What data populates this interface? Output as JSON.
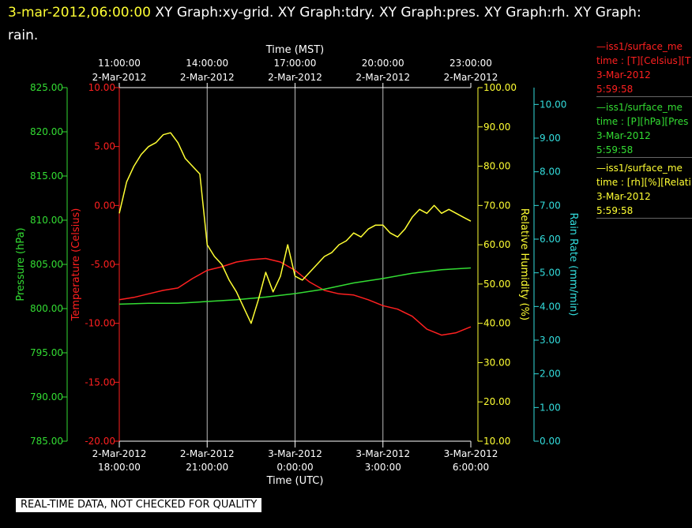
{
  "header": {
    "timestamp": "3-mar-2012,06:00:00",
    "title_line1": "XY Graph:xy-grid.  XY Graph:tdry.  XY Graph:pres.  XY Graph:rh.  XY Graph:",
    "title_line2": "rain."
  },
  "legend": [
    {
      "line1": "—iss1/surface_me",
      "line2": "time : [T][Celsius][T",
      "line3": "3-Mar-2012",
      "line4": "5:59:58",
      "color": "#ff2020"
    },
    {
      "line1": "—iss1/surface_me",
      "line2": "time : [P][hPa][Pres",
      "line3": "3-Mar-2012",
      "line4": "5:59:58",
      "color": "#33dd33"
    },
    {
      "line1": "—iss1/surface_me",
      "line2": "time : [rh][%][Relati",
      "line3": "3-Mar-2012",
      "line4": "5:59:58",
      "color": "#ffff33"
    }
  ],
  "footer": "REAL-TIME DATA, NOT CHECKED FOR QUALITY",
  "chart_data": {
    "type": "line",
    "x_range_hours": [
      0,
      12
    ],
    "top_axis": {
      "title": "Time (MST)",
      "ticks": [
        {
          "hour": 0,
          "time": "11:00:00",
          "date": "2-Mar-2012"
        },
        {
          "hour": 3,
          "time": "14:00:00",
          "date": "2-Mar-2012"
        },
        {
          "hour": 6,
          "time": "17:00:00",
          "date": "2-Mar-2012"
        },
        {
          "hour": 9,
          "time": "20:00:00",
          "date": "2-Mar-2012"
        },
        {
          "hour": 12,
          "time": "23:00:00",
          "date": "2-Mar-2012"
        }
      ]
    },
    "bottom_axis": {
      "title": "Time (UTC)",
      "ticks": [
        {
          "hour": 0,
          "date": "2-Mar-2012",
          "time": "18:00:00"
        },
        {
          "hour": 3,
          "date": "2-Mar-2012",
          "time": "21:00:00"
        },
        {
          "hour": 6,
          "date": "3-Mar-2012",
          "time": "0:00:00"
        },
        {
          "hour": 9,
          "date": "3-Mar-2012",
          "time": "3:00:00"
        },
        {
          "hour": 12,
          "date": "3-Mar-2012",
          "time": "6:00:00"
        }
      ]
    },
    "grid": true,
    "axes": {
      "pressure": {
        "title": "Pressure (hPa)",
        "color": "#33dd33",
        "min": 785,
        "max": 825,
        "ticks": [
          "785.00",
          "790.00",
          "795.00",
          "800.00",
          "805.00",
          "810.00",
          "815.00",
          "820.00",
          "825.00"
        ]
      },
      "temperature": {
        "title": "Temperature (Celsius)",
        "color": "#ff2020",
        "min": -20,
        "max": 10,
        "ticks": [
          "-20.00",
          "-15.00",
          "-10.00",
          "-5.00",
          "0.00",
          "5.00",
          "10.00"
        ]
      },
      "humidity": {
        "title": "Relative Humidity (%)",
        "color": "#ffff33",
        "min": 10,
        "max": 100,
        "ticks": [
          "10.00",
          "20.00",
          "30.00",
          "40.00",
          "50.00",
          "60.00",
          "70.00",
          "80.00",
          "90.00",
          "100.00"
        ]
      },
      "rain": {
        "title": "Rain Rate (mm/min)",
        "color": "#33dddd",
        "min": 0,
        "max": 10.5,
        "ticks": [
          "0.00",
          "1.00",
          "2.00",
          "3.00",
          "4.00",
          "5.00",
          "6.00",
          "7.00",
          "8.00",
          "9.00",
          "10.00"
        ]
      }
    },
    "series": [
      {
        "axis": "temperature",
        "color": "#ff2020",
        "x": [
          0,
          0.5,
          1,
          1.5,
          2,
          2.5,
          3,
          3.5,
          4,
          4.5,
          5,
          5.5,
          6,
          6.5,
          7,
          7.5,
          8,
          8.5,
          9,
          9.5,
          10,
          10.5,
          11,
          11.5,
          12
        ],
        "y": [
          -8.0,
          -7.8,
          -7.5,
          -7.2,
          -7.0,
          -6.2,
          -5.5,
          -5.2,
          -4.8,
          -4.6,
          -4.5,
          -4.8,
          -5.5,
          -6.5,
          -7.2,
          -7.5,
          -7.6,
          -8.0,
          -8.5,
          -8.8,
          -9.4,
          -10.5,
          -11.0,
          -10.8,
          -10.3
        ]
      },
      {
        "axis": "pressure",
        "color": "#33dd33",
        "x": [
          0,
          1,
          2,
          3,
          4,
          5,
          6,
          7,
          8,
          9,
          10,
          11,
          12
        ],
        "y": [
          800.5,
          800.6,
          800.6,
          800.8,
          801.0,
          801.3,
          801.7,
          802.2,
          802.9,
          803.4,
          804.0,
          804.4,
          804.6
        ]
      },
      {
        "axis": "humidity",
        "color": "#ffff33",
        "x": [
          0,
          0.25,
          0.5,
          0.75,
          1,
          1.25,
          1.5,
          1.75,
          2,
          2.25,
          2.5,
          2.75,
          3,
          3.25,
          3.5,
          3.75,
          4,
          4.25,
          4.5,
          4.75,
          5,
          5.25,
          5.5,
          5.75,
          6,
          6.25,
          6.5,
          6.75,
          7,
          7.25,
          7.5,
          7.75,
          8,
          8.25,
          8.5,
          8.75,
          9,
          9.25,
          9.5,
          9.75,
          10,
          10.25,
          10.5,
          10.75,
          11,
          11.25,
          11.5,
          11.75,
          12
        ],
        "y": [
          68,
          76,
          80,
          83,
          85,
          86,
          88,
          88.5,
          86,
          82,
          80,
          78,
          60,
          57,
          55,
          51,
          48,
          44,
          40,
          46,
          53,
          48,
          52,
          60,
          52,
          51,
          53,
          55,
          57,
          58,
          60,
          61,
          63,
          62,
          64,
          65,
          65,
          63,
          62,
          64,
          67,
          69,
          68,
          70,
          68,
          69,
          68,
          67,
          66
        ]
      }
    ]
  }
}
